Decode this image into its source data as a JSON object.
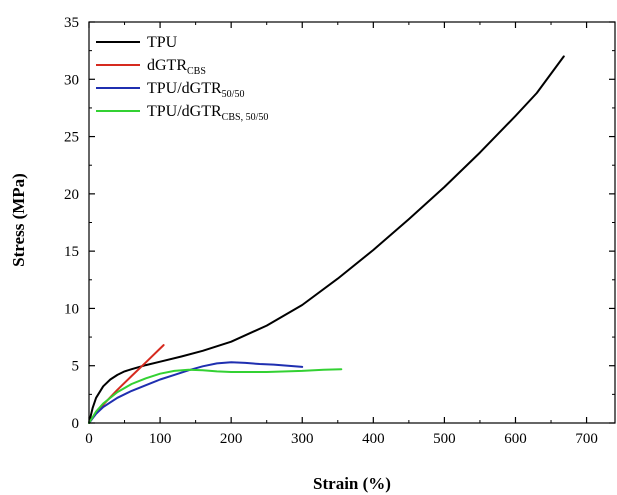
{
  "chart_data": {
    "type": "line",
    "title": "",
    "xlabel": "Strain (%)",
    "ylabel": "Stress (MPa)",
    "xlim": [
      0,
      740
    ],
    "ylim": [
      0,
      35
    ],
    "xticks": [
      0,
      100,
      200,
      300,
      400,
      500,
      600,
      700
    ],
    "yticks": [
      0,
      5,
      10,
      15,
      20,
      25,
      30,
      35
    ],
    "grid": false,
    "legend_position": "top-left",
    "series": [
      {
        "name": "TPU",
        "legend_main": "TPU",
        "legend_sub": "",
        "color": "#000000",
        "x": [
          0,
          5,
          10,
          20,
          30,
          40,
          50,
          60,
          80,
          100,
          130,
          160,
          200,
          250,
          300,
          350,
          400,
          450,
          500,
          550,
          600,
          630,
          668
        ],
        "y": [
          0,
          1.3,
          2.2,
          3.2,
          3.8,
          4.2,
          4.5,
          4.7,
          5.05,
          5.35,
          5.8,
          6.3,
          7.1,
          8.5,
          10.3,
          12.6,
          15.1,
          17.8,
          20.6,
          23.6,
          26.8,
          28.8,
          32.0
        ]
      },
      {
        "name": "dGTR_CBS",
        "legend_main": "dGTR",
        "legend_sub": "CBS",
        "color": "#d62a1f",
        "x": [
          0,
          10,
          20,
          40,
          60,
          80,
          100,
          105
        ],
        "y": [
          0,
          0.9,
          1.6,
          2.9,
          4.1,
          5.3,
          6.5,
          6.8
        ]
      },
      {
        "name": "TPU/dGTR_50/50",
        "legend_main": "TPU/dGTR",
        "legend_sub": "50/50",
        "color": "#1f2fb0",
        "x": [
          0,
          10,
          20,
          40,
          60,
          80,
          100,
          120,
          140,
          160,
          180,
          200,
          220,
          240,
          260,
          280,
          300
        ],
        "y": [
          0,
          0.8,
          1.4,
          2.2,
          2.8,
          3.3,
          3.8,
          4.2,
          4.6,
          4.95,
          5.2,
          5.3,
          5.25,
          5.15,
          5.1,
          5.0,
          4.9
        ]
      },
      {
        "name": "TPU/dGTR_CBS, 50/50",
        "legend_main": "TPU/dGTR",
        "legend_sub": "CBS, 50/50",
        "color": "#33d133",
        "x": [
          0,
          10,
          20,
          40,
          60,
          80,
          100,
          120,
          140,
          160,
          180,
          200,
          250,
          300,
          330,
          355
        ],
        "y": [
          0,
          1.0,
          1.7,
          2.7,
          3.4,
          3.9,
          4.3,
          4.55,
          4.65,
          4.6,
          4.5,
          4.45,
          4.45,
          4.55,
          4.65,
          4.7
        ]
      }
    ]
  }
}
